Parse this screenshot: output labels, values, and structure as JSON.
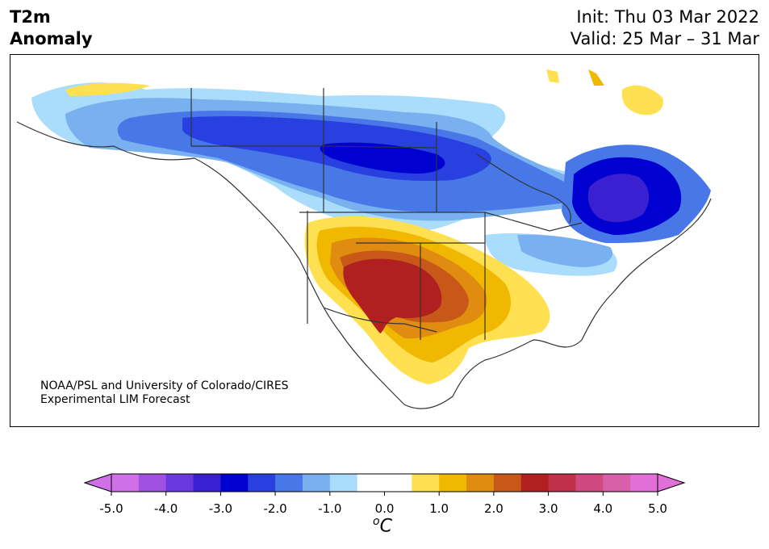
{
  "header": {
    "title_line1": "T2m",
    "title_line2": "Anomaly",
    "init": "Init: Thu 03 Mar 2022",
    "valid": "Valid: 25 Mar – 31 Mar"
  },
  "credit": {
    "line1": "NOAA/PSL and University of Colorado/CIRES",
    "line2": "Experimental LIM Forecast"
  },
  "colorbar": {
    "ticks": [
      "-5.0",
      "-4.0",
      "-3.0",
      "-2.0",
      "-1.0",
      "0.0",
      "1.0",
      "2.0",
      "3.0",
      "4.0",
      "5.0"
    ],
    "unit_prefix": "o",
    "unit_main": "C",
    "min_color": "#d070e8",
    "max_color": "#e070d8",
    "colors": [
      "#d070e8",
      "#a050e0",
      "#6a38dc",
      "#3a20d0",
      "#0000d0",
      "#2840e0",
      "#4878e8",
      "#78b0f0",
      "#aadcfc",
      "#ffffff",
      "#ffffff",
      "#ffe050",
      "#f0b800",
      "#e08c10",
      "#c85818",
      "#b02020",
      "#c03048",
      "#d04880",
      "#d860a8",
      "#e070d8"
    ]
  },
  "map": {
    "field": "2m temperature anomaly",
    "units": "deg C",
    "regions": [
      {
        "name": "Alaska and northwestern Canada",
        "anomaly": "-1.0 to -2.5"
      },
      {
        "name": "Canadian Prairies",
        "anomaly": "-2.0 to -3.0"
      },
      {
        "name": "Quebec",
        "anomaly": "-3.0 to -3.5"
      },
      {
        "name": "Northern US Plains and Great Lakes",
        "anomaly": "-0.5 to -2.0"
      },
      {
        "name": "US Southwest and southern Plains",
        "anomaly": "+2.5 to +3.0"
      },
      {
        "name": "Gulf Coast and northern Mexico",
        "anomaly": "+0.5 to +1.5"
      },
      {
        "name": "Greenland and Baffin Island",
        "anomaly": "+0.5 to +1.5"
      }
    ]
  }
}
